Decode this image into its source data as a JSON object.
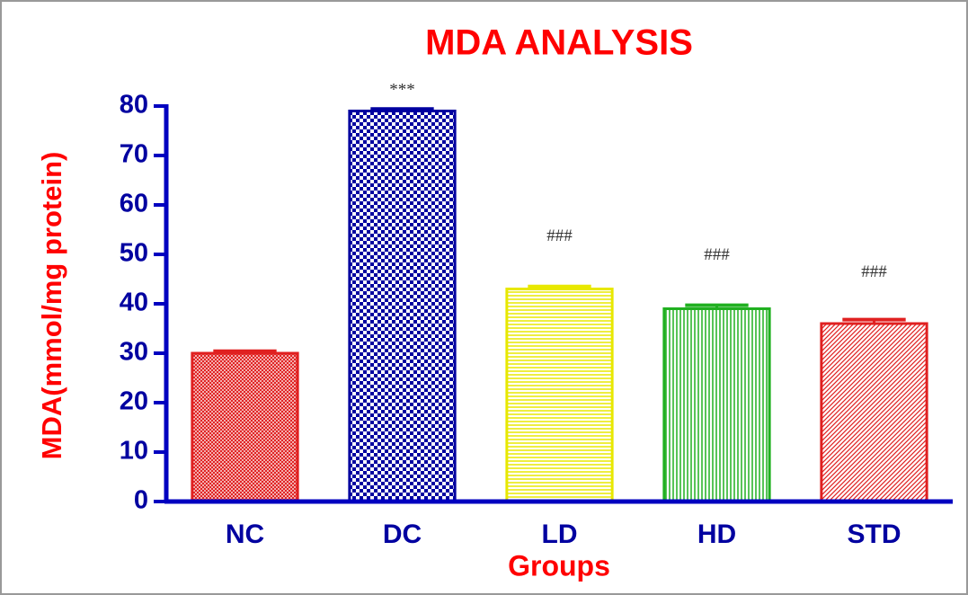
{
  "chart_data": {
    "type": "bar",
    "title": "MDA ANALYSIS",
    "x_label": "Groups",
    "y_label": "MDA(mmol/mg protein)",
    "categories": [
      "NC",
      "DC",
      "LD",
      "HD",
      "STD"
    ],
    "values": [
      30,
      79,
      43,
      39,
      36
    ],
    "errors": [
      0.4,
      0.4,
      0.5,
      0.7,
      0.8
    ],
    "colors": [
      "#e02020",
      "#0000a0",
      "#e8e800",
      "#20b020",
      "#e02020"
    ],
    "annotations": [
      {
        "category": "DC",
        "text": "***"
      },
      {
        "category": "LD",
        "text": "###"
      },
      {
        "category": "HD",
        "text": "###"
      },
      {
        "category": "STD",
        "text": "###"
      }
    ],
    "ylim": [
      0,
      80
    ],
    "yticks": [
      0,
      10,
      20,
      30,
      40,
      50,
      60,
      70,
      80
    ],
    "grid": false
  }
}
